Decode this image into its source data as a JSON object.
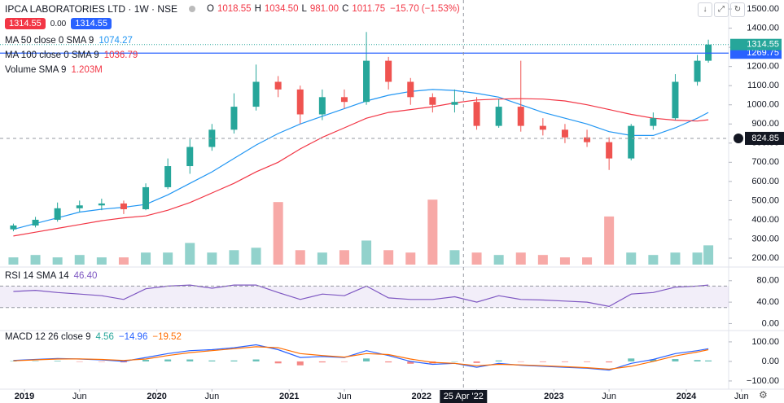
{
  "chart_data": {
    "type": "candlestick",
    "title": "IPCA LABORATORIES LTD · 1W · NSE",
    "ohlc_legend": [
      {
        "label": "O",
        "value": "1018.55"
      },
      {
        "label": "H",
        "value": "1034.50"
      },
      {
        "label": "L",
        "value": "981.00"
      },
      {
        "label": "C",
        "value": "1011.75"
      }
    ],
    "change": "−15.70 (−1.53%)",
    "buttons": [
      "1314.55",
      "0.00",
      "1314.55"
    ],
    "x": [
      "2018-12",
      "2019-02",
      "2019-04",
      "2019-06",
      "2019-08",
      "2019-10",
      "2019-12",
      "2020-02",
      "2020-04",
      "2020-06",
      "2020-08",
      "2020-10",
      "2020-12",
      "2021-02",
      "2021-04",
      "2021-06",
      "2021-08",
      "2021-10",
      "2021-12",
      "2022-02",
      "2022-04",
      "2022-06",
      "2022-08",
      "2022-10",
      "2022-12",
      "2023-02",
      "2023-04",
      "2023-06",
      "2023-08",
      "2023-10",
      "2023-12",
      "2024-02",
      "2024-03"
    ],
    "open": [
      350,
      370,
      400,
      460,
      475,
      485,
      455,
      570,
      680,
      780,
      870,
      990,
      1120,
      1080,
      950,
      1040,
      1015,
      1230,
      1120,
      1040,
      1000,
      1015,
      890,
      990,
      890,
      870,
      830,
      805,
      720,
      890,
      930,
      1120,
      1230
    ],
    "high": [
      380,
      415,
      490,
      500,
      510,
      500,
      590,
      720,
      820,
      900,
      1060,
      1210,
      1150,
      1100,
      1080,
      1080,
      1380,
      1250,
      1140,
      1060,
      1080,
      1040,
      1030,
      1230,
      930,
      900,
      870,
      830,
      900,
      960,
      1160,
      1260,
      1340
    ],
    "low": [
      340,
      360,
      390,
      440,
      450,
      430,
      450,
      560,
      640,
      760,
      850,
      970,
      1040,
      900,
      920,
      980,
      1000,
      1080,
      1000,
      960,
      960,
      870,
      880,
      860,
      840,
      800,
      780,
      660,
      710,
      870,
      920,
      1100,
      1220
    ],
    "close": [
      370,
      400,
      460,
      475,
      485,
      455,
      570,
      680,
      780,
      870,
      990,
      1120,
      1080,
      950,
      1040,
      1015,
      1230,
      1120,
      1040,
      1000,
      1015,
      890,
      990,
      890,
      870,
      830,
      805,
      720,
      890,
      930,
      1120,
      1230,
      1314.55
    ],
    "up_color": "#26a69a",
    "down_color": "#ef5350",
    "ylim": [
      166,
      1547
    ],
    "yticks": [
      {
        "value": 200,
        "label": "200.00"
      },
      {
        "value": 300,
        "label": "300.00"
      },
      {
        "value": 400,
        "label": "400.00"
      },
      {
        "value": 500,
        "label": "500.00"
      },
      {
        "value": 600,
        "label": "600.00"
      },
      {
        "value": 700,
        "label": "700.00"
      },
      {
        "value": 800,
        "label": "800.00"
      },
      {
        "value": 900,
        "label": "900.00"
      },
      {
        "value": 1000,
        "label": "1000.00"
      },
      {
        "value": 1100,
        "label": "1100.00"
      },
      {
        "value": 1200,
        "label": "1200.00"
      },
      {
        "value": 1300,
        "label": "1300.00"
      },
      {
        "value": 1400,
        "label": "1400.00"
      },
      {
        "value": 1500,
        "label": "1500.00"
      }
    ],
    "xticks": [
      {
        "value": "2019-01",
        "label": "2019"
      },
      {
        "value": "2019-06",
        "label": "Jun"
      },
      {
        "value": "2020-01",
        "label": "2020"
      },
      {
        "value": "2020-06",
        "label": "Jun"
      },
      {
        "value": "2021-01",
        "label": "2021"
      },
      {
        "value": "2021-06",
        "label": "Jun"
      },
      {
        "value": "2022-01",
        "label": "2022"
      },
      {
        "value": "2022-06",
        "label": "Jun"
      },
      {
        "value": "2023-01",
        "label": "2023"
      },
      {
        "value": "2023-06",
        "label": "Jun"
      },
      {
        "value": "2024-01",
        "label": "2024"
      },
      {
        "value": "2024-06",
        "label": "Jun"
      }
    ],
    "overlays": [
      {
        "name": "MA 50 close 0 SMA 9",
        "last": "1074.27",
        "color": "#2196f3",
        "values": [
          350,
          380,
          410,
          440,
          455,
          465,
          480,
          530,
          590,
          650,
          720,
          790,
          850,
          900,
          940,
          980,
          1020,
          1050,
          1070,
          1080,
          1075,
          1060,
          1040,
          1000,
          960,
          930,
          900,
          860,
          840,
          840,
          880,
          930,
          960
        ]
      },
      {
        "name": "MA 100 close 0 SMA 9",
        "last": "1036.79",
        "color": "#f23645",
        "values": [
          315,
          335,
          355,
          375,
          395,
          410,
          420,
          450,
          490,
          540,
          590,
          650,
          700,
          770,
          830,
          880,
          930,
          960,
          975,
          990,
          1010,
          1025,
          1030,
          1032,
          1030,
          1020,
          1000,
          975,
          950,
          930,
          920,
          915,
          922
        ]
      }
    ],
    "volume": {
      "name": "Volume SMA 9",
      "last": "1.203M",
      "ylim": [
        0,
        11
      ],
      "values": [
        0.3,
        0.4,
        0.3,
        0.4,
        0.3,
        0.3,
        0.5,
        0.5,
        0.9,
        0.5,
        0.6,
        0.7,
        2.6,
        0.6,
        0.5,
        0.6,
        1.0,
        0.6,
        0.5,
        2.7,
        0.6,
        0.5,
        0.4,
        0.5,
        0.4,
        0.3,
        0.3,
        2.0,
        0.5,
        0.4,
        0.5,
        0.5,
        0.8
      ]
    },
    "price_line": {
      "value": 1269.75,
      "color": "#2962ff"
    },
    "last_price": 1314.55,
    "crosshair": {
      "x": {
        "value": "2022-04-25",
        "label": "25 Apr '22"
      },
      "y": 824.85
    },
    "rsi": {
      "name": "RSI 14 SMA 14",
      "last": "46.40",
      "color": "#7e57c2",
      "ylim": [
        -13,
        104
      ],
      "band": [
        30,
        70
      ],
      "yticks": [
        {
          "value": 0,
          "label": "0.00"
        },
        {
          "value": 40,
          "label": "40.00"
        },
        {
          "value": 80,
          "label": "80.00"
        }
      ],
      "values": [
        60,
        62,
        58,
        55,
        52,
        45,
        65,
        70,
        72,
        66,
        72,
        72,
        58,
        45,
        55,
        52,
        70,
        48,
        45,
        45,
        50,
        40,
        52,
        45,
        44,
        42,
        40,
        32,
        55,
        58,
        68,
        70,
        72
      ]
    },
    "macd": {
      "name": "MACD 12 26 close 9",
      "last": [
        "4.56",
        "−14.96",
        "−19.52"
      ],
      "ylim": [
        -142,
        158
      ],
      "line_color": "#2962ff",
      "signal_color": "#ff6d00",
      "yticks": [
        {
          "value": -100,
          "label": "−100.00"
        },
        {
          "value": 0,
          "label": "0.00"
        },
        {
          "value": 100,
          "label": "100.00"
        }
      ],
      "macd": [
        5,
        10,
        15,
        12,
        8,
        0,
        20,
        40,
        55,
        60,
        70,
        85,
        60,
        20,
        25,
        20,
        55,
        30,
        0,
        -15,
        -10,
        -30,
        -10,
        -20,
        -25,
        -30,
        -35,
        -45,
        -10,
        10,
        40,
        55,
        65
      ],
      "signal": [
        3,
        8,
        12,
        13,
        10,
        5,
        12,
        30,
        45,
        55,
        65,
        75,
        70,
        40,
        30,
        22,
        40,
        35,
        12,
        -5,
        -10,
        -22,
        -15,
        -18,
        -22,
        -27,
        -32,
        -40,
        -25,
        0,
        28,
        48,
        60
      ],
      "histogram": [
        2,
        2,
        3,
        -1,
        -2,
        -5,
        8,
        10,
        10,
        5,
        5,
        10,
        -10,
        -20,
        -5,
        -2,
        15,
        -5,
        -12,
        -10,
        0,
        -8,
        5,
        -2,
        -3,
        -3,
        -3,
        -5,
        15,
        10,
        12,
        7,
        5
      ]
    }
  }
}
